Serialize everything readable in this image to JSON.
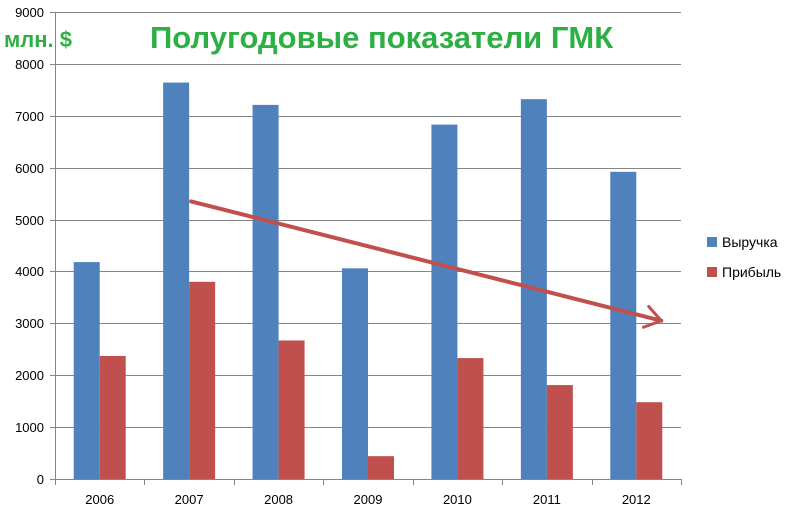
{
  "chart_data": {
    "type": "bar",
    "title": "Полугодовые показатели ГМК",
    "unit_label": "млн. $",
    "xlabel": "",
    "ylabel": "",
    "categories": [
      "2006",
      "2007",
      "2008",
      "2009",
      "2010",
      "2011",
      "2012"
    ],
    "series": [
      {
        "name": "Выручка",
        "color": "#4f81bd",
        "values": [
          4180,
          7640,
          7210,
          4060,
          6830,
          7320,
          5920
        ]
      },
      {
        "name": "Прибыль",
        "color": "#c0504d",
        "values": [
          2370,
          3800,
          2670,
          440,
          2330,
          1810,
          1480
        ]
      }
    ],
    "ylim": [
      0,
      9000
    ],
    "yticks": [
      "0",
      "1000",
      "2000",
      "3000",
      "4000",
      "5000",
      "6000",
      "7000",
      "8000",
      "9000"
    ],
    "grid": true,
    "legend_position": "right",
    "annotations": [
      {
        "type": "trend-arrow",
        "color": "#c0504d",
        "from": {
          "x": "2007",
          "y": 5350
        },
        "to": {
          "x": "2012",
          "y": 3050
        }
      }
    ],
    "colors": {
      "title": "#2db043",
      "axis": "#868686",
      "grid": "#868686"
    }
  }
}
